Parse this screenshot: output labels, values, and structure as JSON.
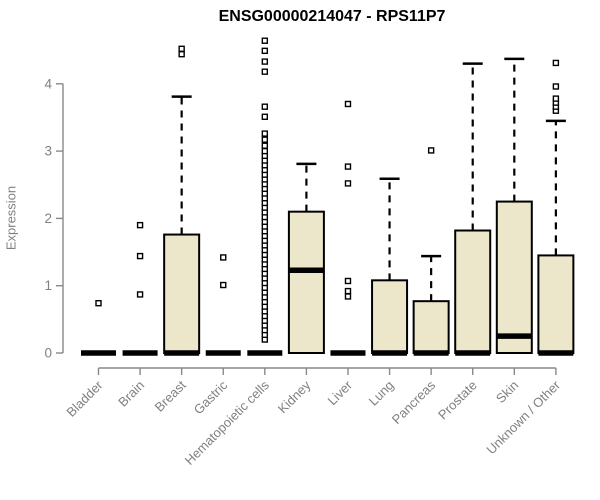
{
  "chart_data": {
    "type": "boxplot",
    "title": "ENSG00000214047 - RPS11P7",
    "ylabel": "Expression",
    "xlabel": "",
    "ylim": [
      0,
      4.75
    ],
    "yticks": [
      0,
      1,
      2,
      3,
      4
    ],
    "grid": false,
    "legend": "none",
    "box_fill_color": "#ece7cb",
    "box_border_color": "#000000",
    "axis_line_color": "#888888",
    "axis_text_color": "#808080",
    "title_color": "#000000",
    "categories": [
      "Bladder",
      "Brain",
      "Breast",
      "Gastric",
      "Hematopoietic cells",
      "Kidney",
      "Liver",
      "Lung",
      "Pancreas",
      "Prostate",
      "Skin",
      "Unknown / Other"
    ],
    "series": [
      {
        "label": "Bladder",
        "q1": 0,
        "median": 0,
        "q3": 0,
        "whisker_low": 0,
        "whisker_high": 0,
        "outliers": [
          0.74
        ]
      },
      {
        "label": "Brain",
        "q1": 0,
        "median": 0,
        "q3": 0,
        "whisker_low": 0,
        "whisker_high": 0,
        "outliers": [
          0.87,
          1.44,
          1.9
        ]
      },
      {
        "label": "Breast",
        "q1": 0,
        "median": 0,
        "q3": 1.76,
        "whisker_low": 0,
        "whisker_high": 3.81,
        "outliers": [
          4.44,
          4.52
        ]
      },
      {
        "label": "Gastric",
        "q1": 0,
        "median": 0,
        "q3": 0,
        "whisker_low": 0,
        "whisker_high": 0,
        "outliers": [
          1.01,
          1.42
        ]
      },
      {
        "label": "Hematopoietic cells",
        "q1": 0,
        "median": 0,
        "q3": 0,
        "whisker_low": 0,
        "whisker_high": 0,
        "outliers": [
          0.2,
          0.27,
          0.34,
          0.41,
          0.48,
          0.55,
          0.62,
          0.69,
          0.76,
          0.83,
          0.9,
          0.97,
          1.04,
          1.11,
          1.18,
          1.25,
          1.32,
          1.39,
          1.46,
          1.53,
          1.6,
          1.67,
          1.74,
          1.81,
          1.88,
          1.95,
          2.02,
          2.09,
          2.16,
          2.23,
          2.3,
          2.37,
          2.44,
          2.51,
          2.58,
          2.65,
          2.72,
          2.79,
          2.86,
          2.93,
          3.0,
          3.08,
          3.17,
          3.26,
          3.51,
          3.66,
          4.18,
          4.33,
          4.49,
          4.64
        ]
      },
      {
        "label": "Kidney",
        "q1": 0,
        "median": 1.23,
        "q3": 2.1,
        "whisker_low": 0,
        "whisker_high": 2.81,
        "outliers": []
      },
      {
        "label": "Liver",
        "q1": 0,
        "median": 0,
        "q3": 0,
        "whisker_low": 0,
        "whisker_high": 0,
        "outliers": [
          0.84,
          0.92,
          1.07,
          2.52,
          2.77,
          3.7
        ]
      },
      {
        "label": "Lung",
        "q1": 0,
        "median": 0,
        "q3": 1.08,
        "whisker_low": 0,
        "whisker_high": 2.59,
        "outliers": []
      },
      {
        "label": "Pancreas",
        "q1": 0,
        "median": 0,
        "q3": 0.77,
        "whisker_low": 0,
        "whisker_high": 1.44,
        "outliers": [
          3.01
        ]
      },
      {
        "label": "Prostate",
        "q1": 0,
        "median": 0,
        "q3": 1.82,
        "whisker_low": 0,
        "whisker_high": 4.3,
        "outliers": []
      },
      {
        "label": "Skin",
        "q1": 0,
        "median": 0.25,
        "q3": 2.25,
        "whisker_low": 0,
        "whisker_high": 4.37,
        "outliers": []
      },
      {
        "label": "Unknown / Other",
        "q1": 0,
        "median": 0,
        "q3": 1.45,
        "whisker_low": 0,
        "whisker_high": 3.45,
        "outliers": [
          3.6,
          3.66,
          3.72,
          3.78,
          3.96,
          4.31
        ]
      }
    ]
  }
}
